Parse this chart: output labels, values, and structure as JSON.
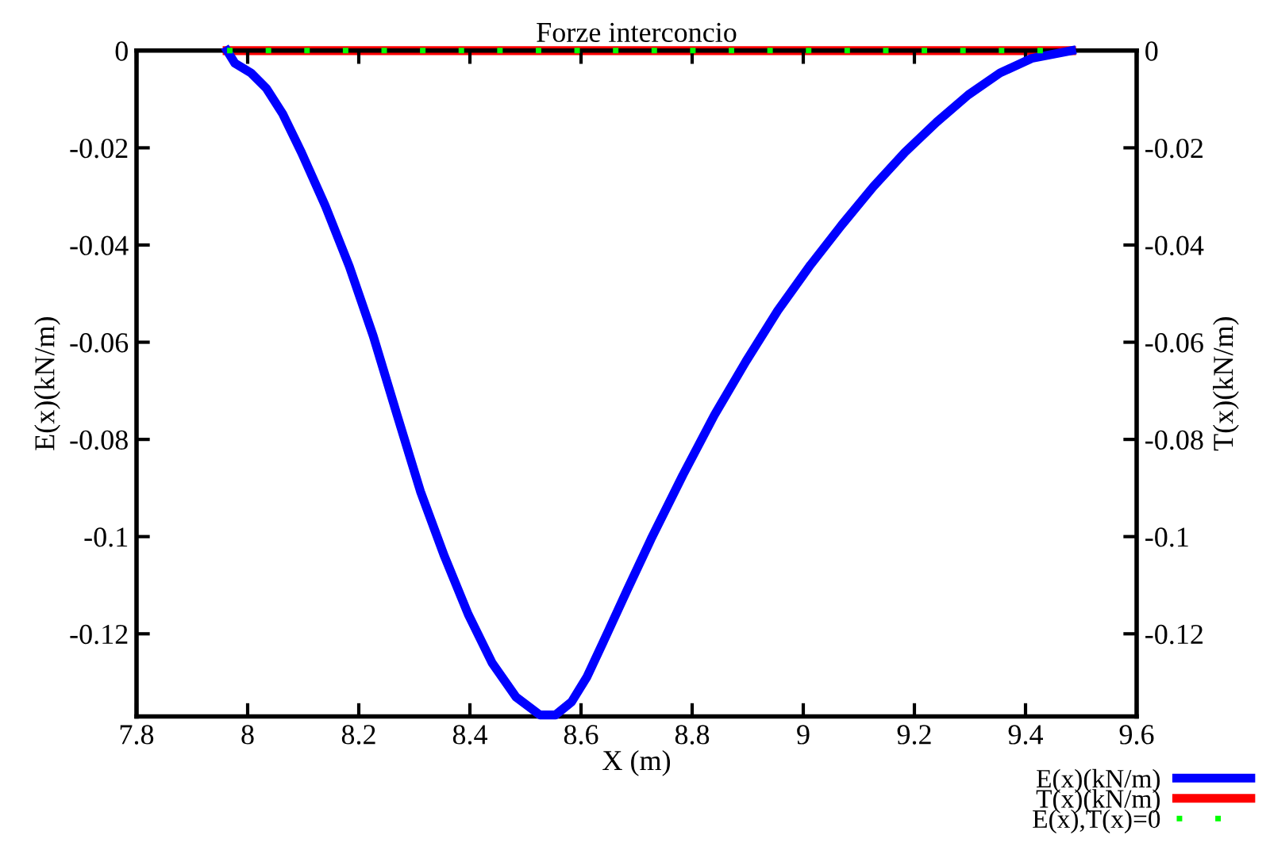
{
  "chart_data": {
    "type": "line",
    "title": "Forze interconcio",
    "xlabel": "X (m)",
    "ylabel": "E(x)(kN/m)",
    "y2label": "T(x)(kN/m)",
    "xlim": [
      7.8,
      9.6
    ],
    "xticks": [
      7.8,
      8,
      8.2,
      8.4,
      8.6,
      8.8,
      9,
      9.2,
      9.4,
      9.6
    ],
    "ylim": [
      -0.137,
      0
    ],
    "yticks": [
      -0.12,
      -0.1,
      -0.08,
      -0.06,
      -0.04,
      -0.02,
      0
    ],
    "y2lim": [
      -0.137,
      0
    ],
    "y2ticks": [
      -0.12,
      -0.1,
      -0.08,
      -0.06,
      -0.04,
      -0.02,
      0
    ],
    "legend": "bottom right",
    "grid": false,
    "series": [
      {
        "name": "E(x)(kN/m)",
        "color": "#0000ff",
        "line_style": "solid",
        "x": [
          7.963,
          7.977,
          8.006,
          8.034,
          8.063,
          8.097,
          8.14,
          8.183,
          8.226,
          8.269,
          8.311,
          8.354,
          8.397,
          8.44,
          8.483,
          8.526,
          8.554,
          8.583,
          8.611,
          8.64,
          8.683,
          8.726,
          8.783,
          8.84,
          8.897,
          8.954,
          9.011,
          9.069,
          9.126,
          9.183,
          9.24,
          9.297,
          9.354,
          9.411,
          9.483
        ],
        "values": [
          0,
          -0.0026,
          -0.0046,
          -0.0078,
          -0.013,
          -0.021,
          -0.032,
          -0.0444,
          -0.0587,
          -0.075,
          -0.0907,
          -0.104,
          -0.116,
          -0.126,
          -0.133,
          -0.1367,
          -0.1367,
          -0.134,
          -0.1288,
          -0.1217,
          -0.111,
          -0.1005,
          -0.0874,
          -0.075,
          -0.0639,
          -0.0535,
          -0.0444,
          -0.0359,
          -0.028,
          -0.0209,
          -0.0147,
          -0.0091,
          -0.0046,
          -0.0016,
          0
        ]
      },
      {
        "name": "T(x)(kN/m)",
        "color": "#ff0000",
        "line_style": "solid",
        "axis": "y2",
        "x": [
          7.963,
          9.483
        ],
        "values": [
          0,
          0
        ]
      },
      {
        "name": "E(x),T(x)=0",
        "color": "#00ff00",
        "line_style": "dotted",
        "x": [
          7.963,
          9.483
        ],
        "values": [
          0,
          0
        ]
      }
    ]
  }
}
